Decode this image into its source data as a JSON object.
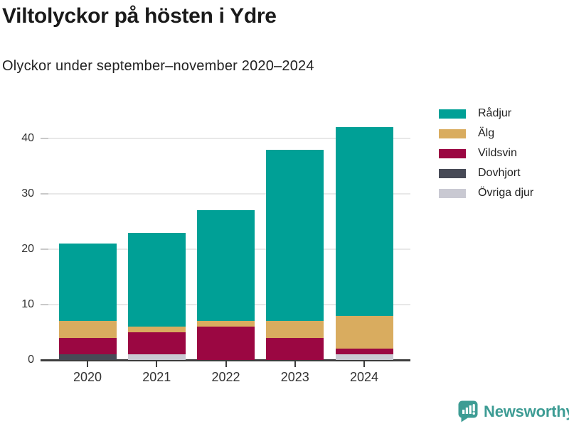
{
  "header": {
    "title": "Viltolyckor på hösten i Ydre",
    "subtitle": "Olyckor under september–november 2020–2024"
  },
  "chart_data": {
    "type": "bar",
    "stacked": true,
    "title": "Viltolyckor på hösten i Ydre",
    "subtitle": "Olyckor under september–november 2020–2024",
    "categories": [
      "2020",
      "2021",
      "2022",
      "2023",
      "2024"
    ],
    "series": [
      {
        "name": "Rådjur",
        "color": "#00a096",
        "values": [
          14,
          17,
          20,
          31,
          34
        ]
      },
      {
        "name": "Älg",
        "color": "#d9ac5f",
        "values": [
          3,
          1,
          1,
          3,
          6
        ]
      },
      {
        "name": "Vildsvin",
        "color": "#9b0742",
        "values": [
          3,
          4,
          6,
          4,
          1
        ]
      },
      {
        "name": "Dovhjort",
        "color": "#474a56",
        "values": [
          1,
          0,
          0,
          0,
          0
        ]
      },
      {
        "name": "Övriga djur",
        "color": "#c9c9d2",
        "values": [
          0,
          1,
          0,
          0,
          1
        ]
      }
    ],
    "stack_order_bottom_to_top": [
      "Övriga djur",
      "Dovhjort",
      "Vildsvin",
      "Älg",
      "Rådjur"
    ],
    "bar_totals": [
      21,
      23,
      27,
      38,
      42
    ],
    "xlabel": "",
    "ylabel": "",
    "ylim": [
      0,
      43.5
    ],
    "yticks": [
      0,
      10,
      20,
      30,
      40
    ],
    "grid": true,
    "legend_position": "right"
  },
  "footer": {
    "brand": "Newsworthy",
    "logo_icon": "bar-chart-speech-bubble-icon",
    "brand_color": "#3d9c94"
  }
}
